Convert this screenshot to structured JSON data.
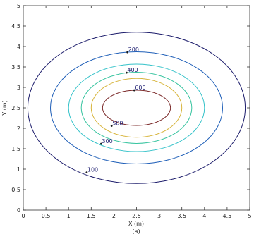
{
  "chart_data": {
    "type": "contour",
    "title": "",
    "xlabel": "X (m)",
    "ylabel": "Y (m)",
    "caption": "(a)",
    "xlim": [
      0,
      5
    ],
    "ylim": [
      0,
      5
    ],
    "xticks": [
      "0",
      "0.5",
      "1",
      "1.5",
      "2",
      "2.5",
      "3",
      "3.5",
      "4",
      "4.5",
      "5"
    ],
    "yticks": [
      "0",
      "0.5",
      "1",
      "1.5",
      "2",
      "2.5",
      "3",
      "3.5",
      "4",
      "4.5",
      "5"
    ],
    "grid": false,
    "center": [
      2.5,
      2.5
    ],
    "levels": [
      {
        "value": 100,
        "label": "100",
        "color": "#1c1c6b",
        "rx": 2.4,
        "ry": 1.85,
        "label_at": [
          1.4,
          0.92
        ]
      },
      {
        "value": 200,
        "label": "200",
        "color": "#1f5fb8",
        "rx": 1.9,
        "ry": 1.37,
        "label_at": [
          2.3,
          3.86
        ]
      },
      {
        "value": 300,
        "label": "300",
        "color": "#34c2c9",
        "rx": 1.5,
        "ry": 1.07,
        "label_at": [
          1.72,
          1.62
        ]
      },
      {
        "value": 400,
        "label": "400",
        "color": "#38c4a0",
        "rx": 1.22,
        "ry": 0.87,
        "label_at": [
          2.28,
          3.36
        ]
      },
      {
        "value": 500,
        "label": "500",
        "color": "#d7b43a",
        "rx": 1.0,
        "ry": 0.72,
        "label_at": [
          1.95,
          2.06
        ]
      },
      {
        "value": 600,
        "label": "600",
        "color": "#7a2828",
        "rx": 0.75,
        "ry": 0.43,
        "label_at": [
          2.45,
          2.93
        ]
      }
    ]
  }
}
